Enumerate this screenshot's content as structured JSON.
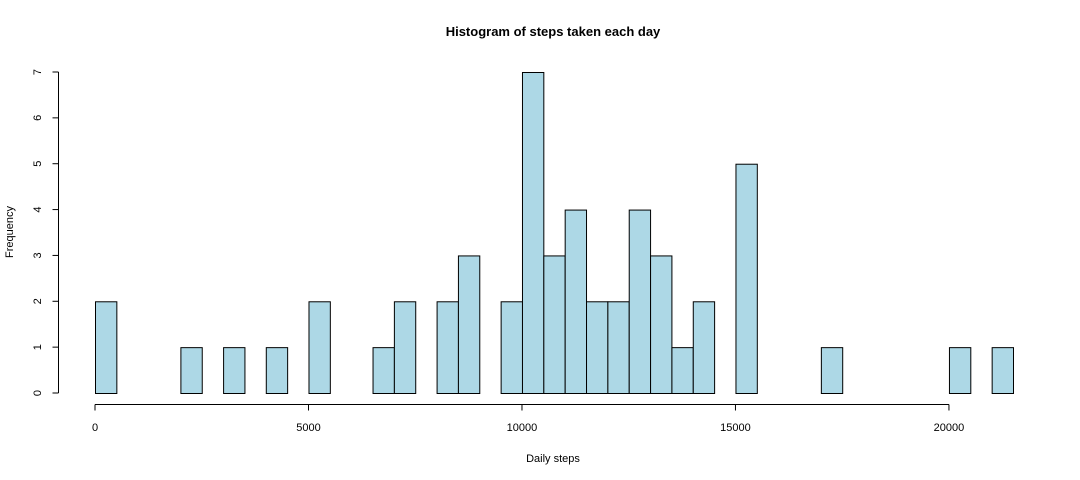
{
  "chart_data": {
    "type": "bar",
    "title": "Histogram of steps taken each day",
    "xlabel": "Daily steps",
    "ylabel": "Frequency",
    "bin_width": 500,
    "xlim": [
      0,
      21500
    ],
    "ylim": [
      0,
      7
    ],
    "x_ticks": [
      0,
      5000,
      10000,
      15000,
      20000
    ],
    "y_ticks": [
      0,
      1,
      2,
      3,
      4,
      5,
      6,
      7
    ],
    "bar_color": "#add8e6",
    "bins": [
      {
        "start": 0,
        "end": 500,
        "count": 2
      },
      {
        "start": 2000,
        "end": 2500,
        "count": 1
      },
      {
        "start": 3000,
        "end": 3500,
        "count": 1
      },
      {
        "start": 4000,
        "end": 4500,
        "count": 1
      },
      {
        "start": 5000,
        "end": 5500,
        "count": 2
      },
      {
        "start": 6500,
        "end": 7000,
        "count": 1
      },
      {
        "start": 7000,
        "end": 7500,
        "count": 2
      },
      {
        "start": 8000,
        "end": 8500,
        "count": 2
      },
      {
        "start": 8500,
        "end": 9000,
        "count": 3
      },
      {
        "start": 9500,
        "end": 10000,
        "count": 2
      },
      {
        "start": 10000,
        "end": 10500,
        "count": 7
      },
      {
        "start": 10500,
        "end": 11000,
        "count": 3
      },
      {
        "start": 11000,
        "end": 11500,
        "count": 4
      },
      {
        "start": 11500,
        "end": 12000,
        "count": 2
      },
      {
        "start": 12000,
        "end": 12500,
        "count": 2
      },
      {
        "start": 12500,
        "end": 13000,
        "count": 4
      },
      {
        "start": 13000,
        "end": 13500,
        "count": 3
      },
      {
        "start": 13500,
        "end": 14000,
        "count": 1
      },
      {
        "start": 14000,
        "end": 14500,
        "count": 2
      },
      {
        "start": 15000,
        "end": 15500,
        "count": 5
      },
      {
        "start": 17000,
        "end": 17500,
        "count": 1
      },
      {
        "start": 20000,
        "end": 20500,
        "count": 1
      },
      {
        "start": 21000,
        "end": 21500,
        "count": 1
      }
    ]
  }
}
